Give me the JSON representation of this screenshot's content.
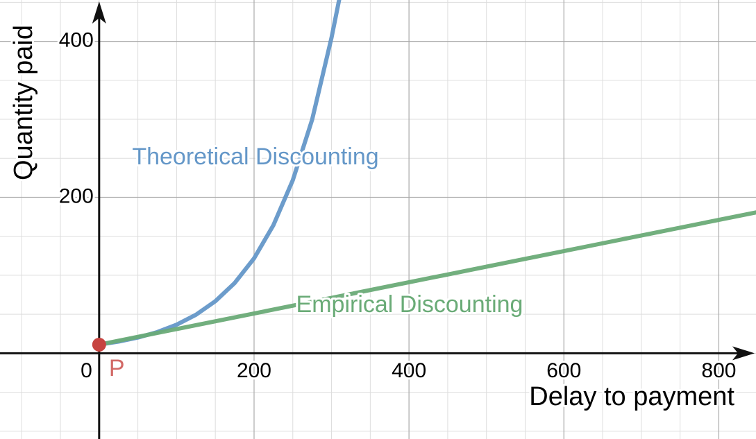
{
  "chart_data": {
    "type": "line",
    "xlabel": "Delay to payment",
    "ylabel": "Quantity paid",
    "xlim": [
      -128,
      848
    ],
    "ylim": [
      -110,
      453
    ],
    "xticks": [
      0,
      200,
      400,
      600,
      800
    ],
    "yticks": [
      200,
      400
    ],
    "grid": true,
    "minor_grid_step": 50,
    "series": [
      {
        "name": "Theoretical Discounting",
        "color": "#6497c8",
        "x": [
          0,
          25,
          50,
          75,
          100,
          125,
          150,
          175,
          200,
          225,
          250,
          275,
          300,
          310
        ],
        "values": [
          11,
          14.9,
          20.1,
          27.1,
          36.6,
          49.4,
          66.7,
          90.1,
          121.7,
          164.3,
          221.9,
          299.7,
          404.7,
          454
        ]
      },
      {
        "name": "Empirical Discounting",
        "color": "#6aab77",
        "x": [
          0,
          424,
          848
        ],
        "values": [
          11,
          95.8,
          180.6
        ]
      }
    ],
    "points": [
      {
        "label": "P",
        "x": 0,
        "y": 11,
        "color": "#c74440"
      }
    ]
  }
}
